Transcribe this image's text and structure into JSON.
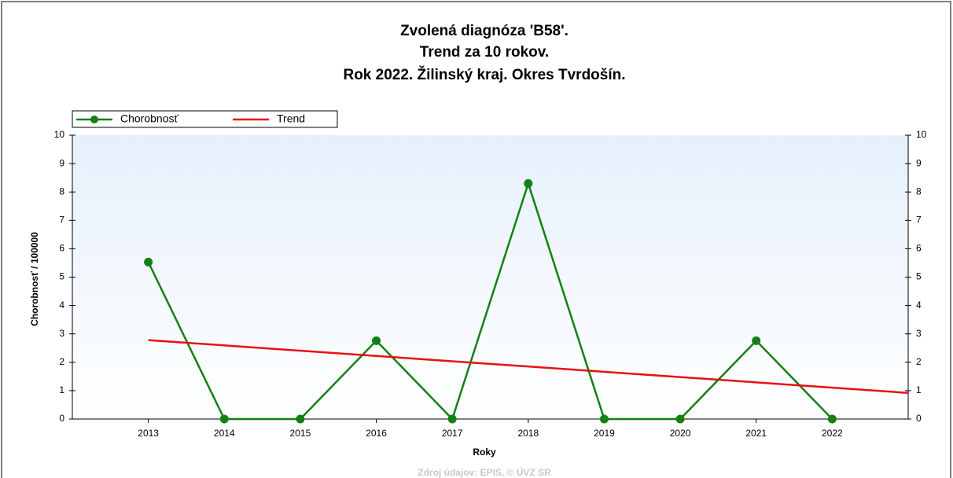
{
  "chart_data": {
    "type": "line",
    "title": [
      "Zvolená diagnóza 'B58'.",
      "Trend za 10 rokov.",
      "Rok 2022. Žilinský kraj. Okres Tvrdošín."
    ],
    "x_label": "Roky",
    "y_label": "Chorobnosť / 100000",
    "source": "Zdroj údajov: EPIS, © ÚVZ SR",
    "xlim": [
      2012,
      2023
    ],
    "xticks": [
      2013,
      2014,
      2015,
      2016,
      2017,
      2018,
      2019,
      2020,
      2021,
      2022
    ],
    "ylim": [
      0,
      10
    ],
    "yticks": [
      0,
      1,
      2,
      3,
      4,
      5,
      6,
      7,
      8,
      9,
      10
    ],
    "series": [
      {
        "name": "Chorobnosť",
        "color": "#138013",
        "markers": true,
        "x": [
          2013,
          2014,
          2015,
          2016,
          2017,
          2018,
          2019,
          2020,
          2021,
          2022
        ],
        "values": [
          5.53,
          0,
          0,
          2.76,
          0,
          8.3,
          0,
          0,
          2.76,
          0
        ]
      },
      {
        "name": "Trend",
        "color": "#e81010",
        "markers": false,
        "x": [
          2013,
          2023
        ],
        "values": [
          2.78,
          0.92
        ]
      }
    ]
  }
}
